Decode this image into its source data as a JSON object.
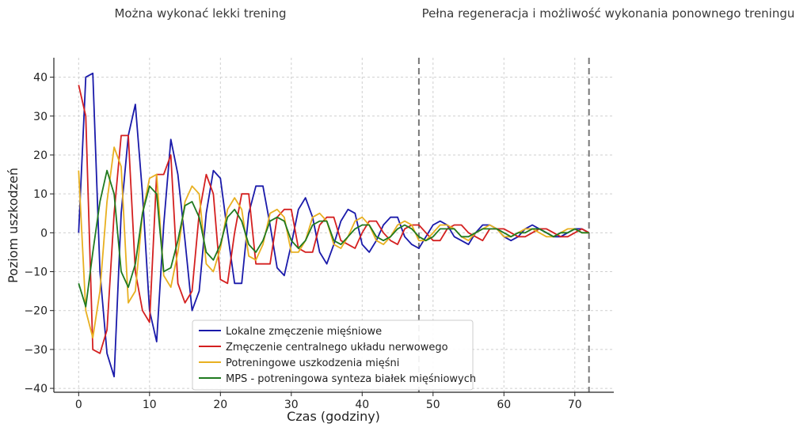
{
  "chart_data": {
    "type": "line",
    "annotations": [
      {
        "text": "Można wykonać lekki trening",
        "x": 48
      },
      {
        "text": "Pełna regeneracja i możliwość wykonania ponownego treningu",
        "x": 72
      }
    ],
    "xlabel": "Czas (godziny)",
    "ylabel": "Poziom uszkodzeń",
    "xlim": [
      -3.5,
      75.5
    ],
    "ylim": [
      -41,
      45
    ],
    "xticks": [
      0,
      10,
      20,
      30,
      40,
      50,
      60,
      70
    ],
    "yticks": [
      40,
      30,
      20,
      10,
      0,
      -10,
      -20,
      -30,
      -40
    ],
    "ytick_labels": [
      "40",
      "30",
      "20",
      "10",
      "0",
      "−10",
      "−20",
      "−30",
      "−40"
    ],
    "grid": true,
    "vlines": [
      48,
      72
    ],
    "legend_position": "lower-center",
    "series": [
      {
        "name": "Lokalne zmęczenie mięśniowe",
        "color": "#1a1aaa",
        "values": [
          0,
          40,
          41,
          -10,
          -31,
          -37,
          5,
          25,
          33,
          10,
          -20,
          -28,
          2,
          24,
          15,
          -2,
          -20,
          -15,
          5,
          16,
          14,
          0,
          -13,
          -13,
          5,
          12,
          12,
          2,
          -9,
          -11,
          -3,
          6,
          9,
          4,
          -5,
          -8,
          -3,
          3,
          6,
          5,
          -3,
          -5,
          -2,
          2,
          4,
          4,
          -1,
          -3,
          -4,
          -1,
          2,
          3,
          2,
          -1,
          -2,
          -3,
          0,
          2,
          2,
          1,
          -1,
          -2,
          -1,
          1,
          2,
          1,
          0,
          -1,
          -1,
          0,
          1,
          1,
          0
        ]
      },
      {
        "name": "Zmęczenie centralnego układu nerwowego",
        "color": "#d42020",
        "values": [
          38,
          30,
          -30,
          -31,
          -25,
          5,
          25,
          25,
          -10,
          -20,
          -23,
          15,
          15,
          20,
          -13,
          -18,
          -15,
          5,
          15,
          10,
          -12,
          -13,
          0,
          10,
          10,
          -8,
          -8,
          -8,
          4,
          6,
          6,
          -4,
          -5,
          -5,
          2,
          4,
          4,
          -2,
          -3,
          -4,
          0,
          3,
          3,
          0,
          -2,
          -3,
          1,
          2,
          2,
          0,
          -2,
          -2,
          1,
          2,
          2,
          0,
          -1,
          -2,
          1,
          1,
          1,
          0,
          -1,
          -1,
          0,
          1,
          1,
          0,
          -1,
          -1,
          0,
          1,
          0
        ]
      },
      {
        "name": "Potreningowe uszkodzenia mięśni",
        "color": "#e8b020",
        "values": [
          16,
          -20,
          -27,
          -15,
          8,
          22,
          17,
          -18,
          -15,
          5,
          14,
          15,
          -11,
          -14,
          -5,
          8,
          12,
          10,
          -8,
          -10,
          -4,
          6,
          9,
          6,
          -6,
          -7,
          -3,
          5,
          6,
          4,
          -5,
          -5,
          -2,
          4,
          5,
          3,
          -3,
          -4,
          -1,
          3,
          4,
          2,
          -2,
          -3,
          -1,
          2,
          3,
          2,
          -2,
          -2,
          0,
          2,
          2,
          1,
          -1,
          -2,
          0,
          1,
          2,
          1,
          -1,
          -1,
          0,
          1,
          1,
          0,
          -1,
          -1,
          0,
          1,
          1,
          0,
          0
        ]
      },
      {
        "name": "MPS - potreningowa synteza białek mięśniowych",
        "color": "#1f7a1f",
        "values": [
          -13,
          -19,
          -5,
          8,
          16,
          10,
          -10,
          -14,
          -8,
          5,
          12,
          10,
          -10,
          -9,
          -2,
          7,
          8,
          4,
          -5,
          -7,
          -3,
          4,
          6,
          3,
          -3,
          -5,
          -2,
          3,
          4,
          3,
          -2,
          -4,
          -2,
          2,
          3,
          3,
          -2,
          -3,
          -1,
          1,
          2,
          2,
          -1,
          -2,
          -1,
          1,
          2,
          1,
          -1,
          -2,
          -1,
          1,
          1,
          1,
          -1,
          -1,
          0,
          1,
          1,
          1,
          0,
          -1,
          0,
          0,
          1,
          1,
          0,
          -1,
          0,
          0,
          1,
          0,
          0
        ]
      }
    ]
  }
}
